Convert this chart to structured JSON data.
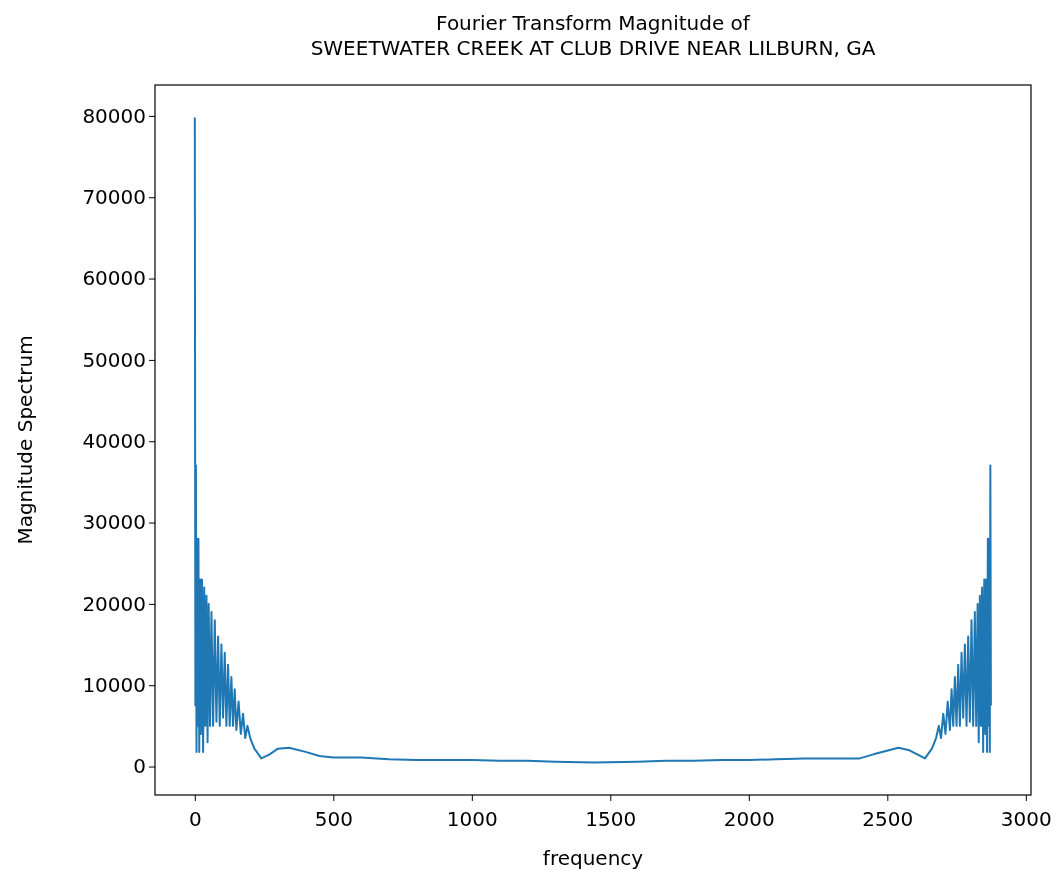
{
  "chart_data": {
    "type": "line",
    "title": "Fourier Transform Magnitude of\nSWEETWATER CREEK AT CLUB DRIVE NEAR LILBURN, GA",
    "xlabel": "frequency",
    "ylabel": "Magnitude Spectrum",
    "xlim": [
      -143.75,
      3018.75
    ],
    "xticks": [
      0,
      500,
      1000,
      1500,
      2000,
      2500,
      3000
    ],
    "ylim": [
      -3500,
      83800
    ],
    "yticks": [
      0,
      10000,
      20000,
      30000,
      40000,
      50000,
      60000,
      70000,
      80000
    ],
    "grid": false,
    "series": [
      {
        "color": "#1f77b4",
        "x": [
          0,
          2,
          4,
          6,
          8,
          10,
          13,
          16,
          19,
          22,
          26,
          30,
          34,
          38,
          42,
          46,
          50,
          55,
          60,
          66,
          72,
          78,
          84,
          90,
          96,
          102,
          108,
          114,
          120,
          126,
          132,
          138,
          144,
          150,
          158,
          166,
          174,
          182,
          190,
          200,
          215,
          240,
          270,
          300,
          340,
          400,
          450,
          500,
          600,
          700,
          800,
          900,
          1000,
          1100,
          1200,
          1300,
          1440,
          1600,
          1700,
          1800,
          1900,
          2000,
          2100,
          2200,
          2300,
          2400,
          2450,
          2540,
          2580,
          2636,
          2661,
          2676,
          2686,
          2694,
          2702,
          2710,
          2718,
          2726,
          2732,
          2738,
          2744,
          2750,
          2756,
          2762,
          2768,
          2774,
          2780,
          2786,
          2792,
          2798,
          2804,
          2810,
          2816,
          2821,
          2826,
          2830,
          2834,
          2838,
          2842,
          2846,
          2850,
          2854,
          2857,
          2860,
          2863,
          2866,
          2868,
          2870,
          2872,
          2874
        ],
        "values": [
          79800,
          7500,
          37000,
          1800,
          28000,
          5000,
          28000,
          1800,
          23000,
          4000,
          23000,
          1800,
          22000,
          5000,
          21000,
          3000,
          20000,
          5000,
          19000,
          5000,
          18000,
          5500,
          16000,
          5000,
          15000,
          6000,
          14000,
          5000,
          12500,
          5000,
          11000,
          5000,
          9500,
          4500,
          8000,
          4000,
          6500,
          3500,
          5000,
          3500,
          2200,
          1000,
          1500,
          2200,
          2300,
          1800,
          1300,
          1100,
          1100,
          900,
          800,
          800,
          800,
          700,
          700,
          600,
          500,
          600,
          700,
          700,
          800,
          800,
          900,
          1000,
          1000,
          1000,
          1500,
          2300,
          2000,
          1000,
          2200,
          3500,
          5000,
          3500,
          6500,
          4000,
          8000,
          4500,
          9500,
          5000,
          11000,
          5000,
          12500,
          5000,
          14000,
          6000,
          15000,
          5000,
          16000,
          5500,
          18000,
          5000,
          19000,
          5000,
          20000,
          3000,
          21000,
          5000,
          22000,
          1800,
          23000,
          4000,
          23000,
          1800,
          28000,
          5000,
          28000,
          1800,
          37000,
          7500
        ]
      }
    ]
  }
}
